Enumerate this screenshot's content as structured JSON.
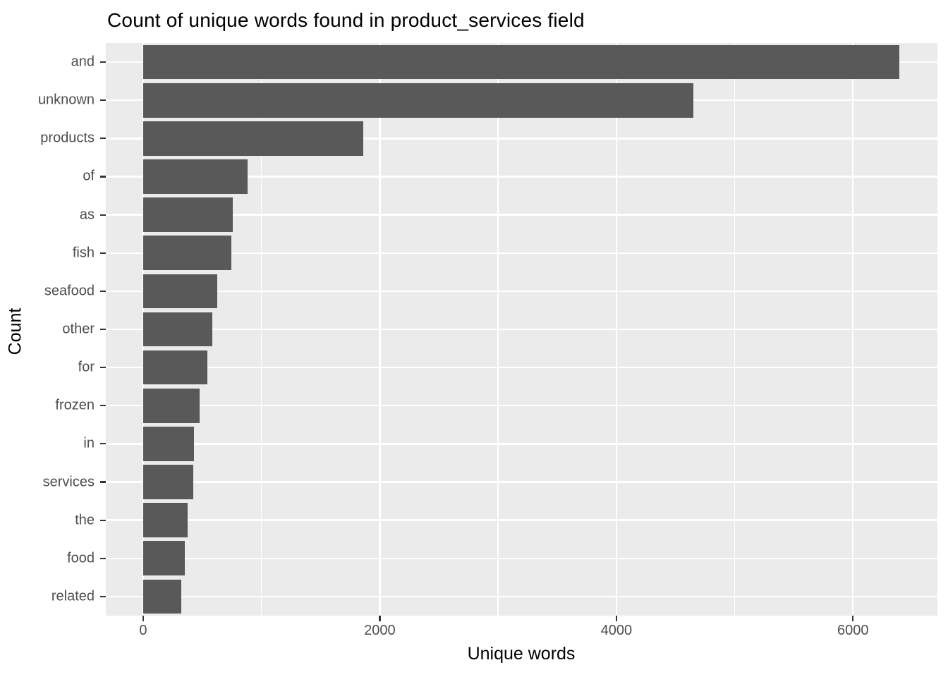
{
  "chart_data": {
    "type": "bar",
    "orientation": "horizontal",
    "title": "Count of unique words found in product_services field",
    "xlabel": "Unique words",
    "ylabel": "Count",
    "categories": [
      "and",
      "unknown",
      "products",
      "of",
      "as",
      "fish",
      "seafood",
      "other",
      "for",
      "frozen",
      "in",
      "services",
      "the",
      "food",
      "related"
    ],
    "values": [
      6390,
      4650,
      1860,
      885,
      755,
      745,
      625,
      585,
      540,
      475,
      430,
      425,
      375,
      350,
      325
    ],
    "x_ticks": [
      0,
      2000,
      4000,
      6000
    ],
    "x_tick_labels": [
      "0",
      "2000",
      "4000",
      "6000"
    ],
    "x_minor_gridlines": [
      1000,
      3000,
      5000
    ],
    "xlim": [
      -316,
      6714
    ],
    "grid": true,
    "legend": false,
    "bar_width_fraction": 0.9,
    "colors": {
      "bar": "#595959",
      "panel_background": "#EBEBEB",
      "gridline": "#FFFFFF",
      "tick_label": "#4D4D4D",
      "tick_mark": "#333333",
      "title_text": "#000000",
      "page_background": "#FFFFFF"
    }
  }
}
